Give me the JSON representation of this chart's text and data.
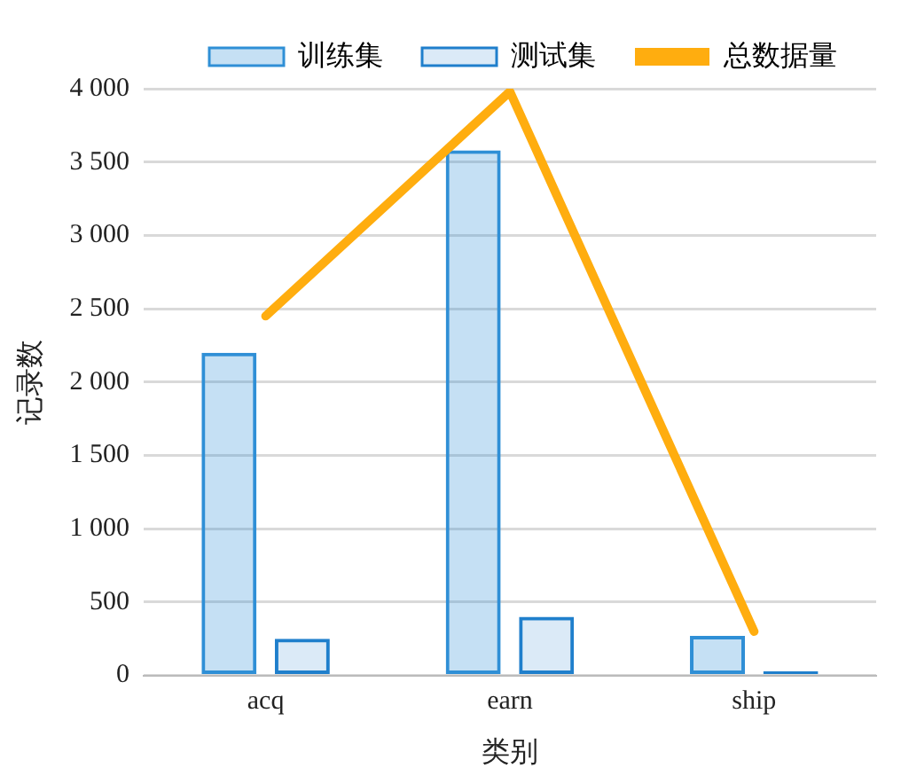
{
  "chart_data": {
    "type": "bar",
    "xlabel": "类别",
    "ylabel": "记录数",
    "categories": [
      "acq",
      "earn",
      "ship"
    ],
    "series": [
      {
        "name": "训练集",
        "color": "#2f8fd6",
        "values": [
          2200,
          3580,
          270
        ]
      },
      {
        "name": "测试集",
        "color": "#1f7fcc",
        "values": [
          250,
          400,
          30
        ]
      },
      {
        "name": "总数据量",
        "type": "line",
        "color": "#ffad0f",
        "values": [
          2450,
          3980,
          300
        ]
      }
    ],
    "ylim": [
      0,
      4000
    ],
    "yticks": [
      0,
      500,
      {
        "value": 1000,
        "label": "1 000"
      },
      {
        "value": 1500,
        "label": "1 500"
      },
      {
        "value": 2000,
        "label": "2 000"
      },
      {
        "value": 2500,
        "label": "2 500"
      },
      {
        "value": 3000,
        "label": "3 000"
      },
      {
        "value": 3500,
        "label": "3 500"
      },
      {
        "value": 4000,
        "label": "4 000"
      }
    ],
    "grid": "y",
    "legend": "top",
    "marker": "none",
    "line_style": "solid"
  }
}
